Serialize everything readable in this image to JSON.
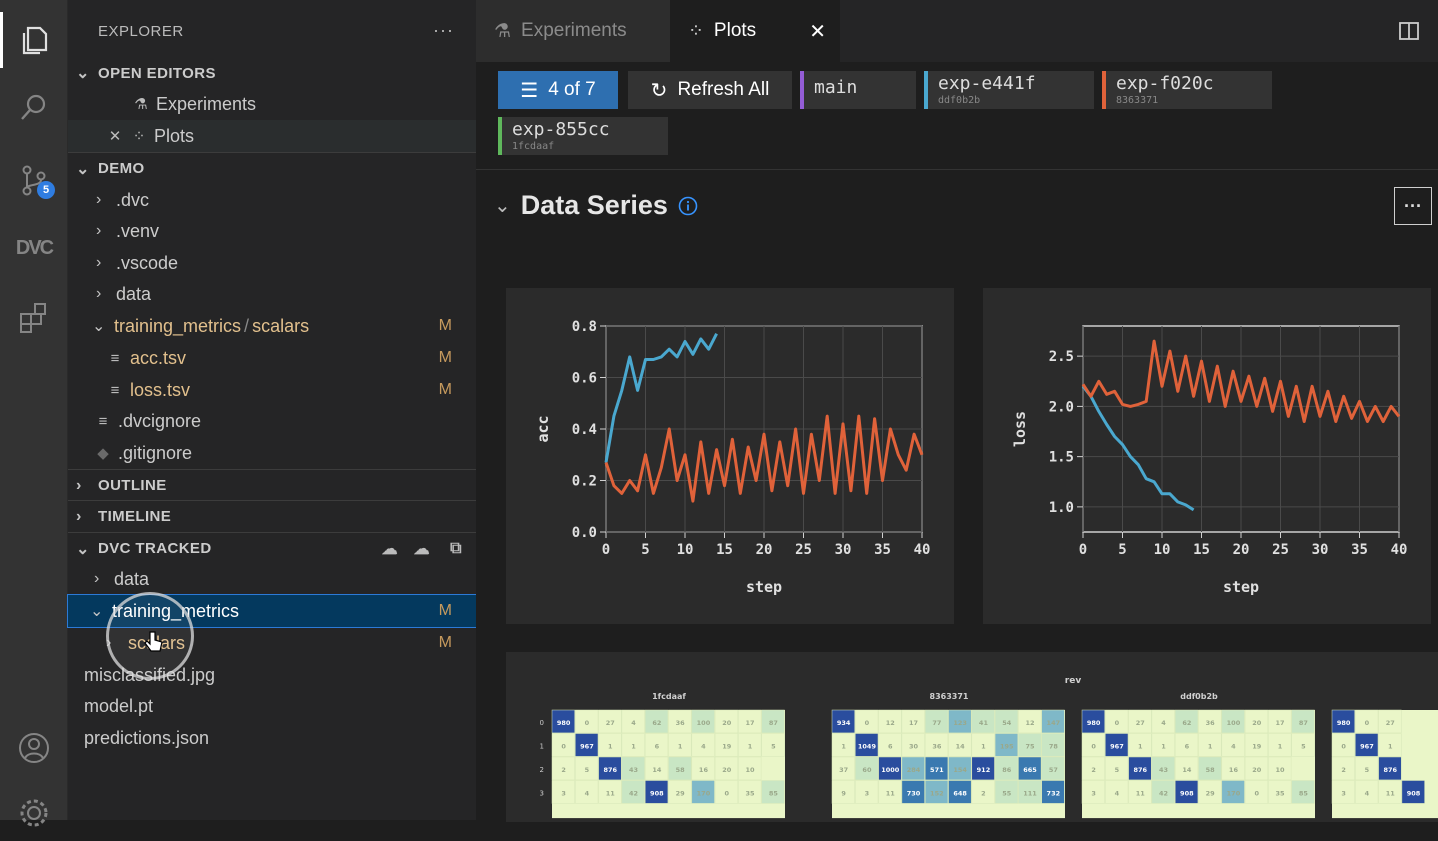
{
  "explorer": {
    "title": "EXPLORER",
    "more": "···",
    "open_editors": {
      "header": "OPEN EDITORS",
      "items": [
        {
          "label": "Experiments"
        },
        {
          "label": "Plots"
        }
      ]
    },
    "demo": {
      "header": "DEMO",
      "items": [
        {
          "label": ".dvc"
        },
        {
          "label": ".venv"
        },
        {
          "label": ".vscode"
        },
        {
          "label": "data"
        },
        {
          "label": "training_metrics",
          "suffix": "scalars",
          "flag": "M"
        },
        {
          "label": "acc.tsv",
          "flag": "M"
        },
        {
          "label": "loss.tsv",
          "flag": "M"
        },
        {
          "label": ".dvcignore"
        },
        {
          "label": ".gitignore"
        }
      ]
    },
    "outline_header": "OUTLINE",
    "timeline_header": "TIMELINE",
    "dvc_tracked": {
      "header": "DVC TRACKED",
      "items": [
        {
          "label": "data"
        },
        {
          "label": "training_metrics",
          "flag": "M"
        },
        {
          "label": "scalars",
          "flag": "M"
        },
        {
          "label": "misclassified.jpg"
        },
        {
          "label": "model.pt"
        },
        {
          "label": "predictions.json"
        }
      ]
    }
  },
  "activity": {
    "scm_badge": "5",
    "dvc_label": "DVC"
  },
  "tabs": [
    {
      "label": "Experiments"
    },
    {
      "label": "Plots"
    }
  ],
  "toolbar": {
    "filter_label": "4 of 7",
    "refresh_label": "Refresh All",
    "revisions": [
      {
        "name": "main",
        "hash": "",
        "color": "#945dd6"
      },
      {
        "name": "exp-e441f",
        "hash": "ddf0b2b",
        "color": "#4aa8cf"
      },
      {
        "name": "exp-f020c",
        "hash": "8363371",
        "color": "#e0623a"
      },
      {
        "name": "exp-855cc",
        "hash": "1fcdaaf",
        "color": "#5fb85c"
      }
    ]
  },
  "section": {
    "title": "Data Series",
    "more": "···"
  },
  "colors": {
    "blue": "#4aa8cf",
    "orange": "#e0623a",
    "accent": "#2f7de1"
  },
  "chart_data": [
    {
      "type": "line",
      "xlabel": "step",
      "ylabel": "acc",
      "xlim": [
        0,
        40
      ],
      "ylim": [
        0,
        0.8
      ],
      "xticks": [
        0,
        5,
        10,
        15,
        20,
        25,
        30,
        35,
        40
      ],
      "yticks": [
        "0.0",
        "0.2",
        "0.4",
        "0.6",
        "0.8"
      ],
      "grid": true,
      "series": [
        {
          "color": "#4aa8cf",
          "x": [
            0,
            1,
            2,
            3,
            4,
            5,
            6,
            7,
            8,
            9,
            10,
            11,
            12,
            13,
            14
          ],
          "y": [
            0.27,
            0.45,
            0.55,
            0.68,
            0.55,
            0.67,
            0.67,
            0.68,
            0.71,
            0.68,
            0.74,
            0.69,
            0.75,
            0.71,
            0.77
          ]
        },
        {
          "color": "#e0623a",
          "x": [
            0,
            1,
            2,
            3,
            4,
            5,
            6,
            7,
            8,
            9,
            10,
            11,
            12,
            13,
            14,
            15,
            16,
            17,
            18,
            19,
            20,
            21,
            22,
            23,
            24,
            25,
            26,
            27,
            28,
            29,
            30,
            31,
            32,
            33,
            34,
            35,
            36,
            37,
            38,
            39,
            40
          ],
          "y": [
            0.27,
            0.18,
            0.15,
            0.2,
            0.16,
            0.3,
            0.15,
            0.25,
            0.4,
            0.2,
            0.3,
            0.12,
            0.35,
            0.15,
            0.32,
            0.18,
            0.36,
            0.15,
            0.33,
            0.2,
            0.38,
            0.16,
            0.35,
            0.18,
            0.4,
            0.15,
            0.38,
            0.2,
            0.45,
            0.15,
            0.42,
            0.16,
            0.45,
            0.15,
            0.44,
            0.2,
            0.4,
            0.3,
            0.24,
            0.38,
            0.3
          ]
        }
      ]
    },
    {
      "type": "line",
      "xlabel": "step",
      "ylabel": "loss",
      "xlim": [
        0,
        40
      ],
      "ylim": [
        0.75,
        2.8
      ],
      "xticks": [
        0,
        5,
        10,
        15,
        20,
        25,
        30,
        35,
        40
      ],
      "yticks": [
        "1.0",
        "1.5",
        "2.0",
        "2.5"
      ],
      "grid": true,
      "series": [
        {
          "color": "#4aa8cf",
          "x": [
            0,
            1,
            2,
            3,
            4,
            5,
            6,
            7,
            8,
            9,
            10,
            11,
            12,
            13,
            14
          ],
          "y": [
            2.2,
            2.1,
            1.95,
            1.82,
            1.7,
            1.62,
            1.5,
            1.42,
            1.28,
            1.25,
            1.13,
            1.13,
            1.05,
            1.02,
            0.97
          ]
        },
        {
          "color": "#e0623a",
          "x": [
            0,
            1,
            2,
            3,
            4,
            5,
            6,
            7,
            8,
            9,
            10,
            11,
            12,
            13,
            14,
            15,
            16,
            17,
            18,
            19,
            20,
            21,
            22,
            23,
            24,
            25,
            26,
            27,
            28,
            29,
            30,
            31,
            32,
            33,
            34,
            35,
            36,
            37,
            38,
            39,
            40
          ],
          "y": [
            2.22,
            2.1,
            2.25,
            2.12,
            2.15,
            2.02,
            2.0,
            2.02,
            2.05,
            2.65,
            2.2,
            2.55,
            2.15,
            2.5,
            2.1,
            2.45,
            2.05,
            2.4,
            2.0,
            2.35,
            2.05,
            2.3,
            2.0,
            2.28,
            1.95,
            2.25,
            1.9,
            2.2,
            1.85,
            2.2,
            1.9,
            2.15,
            1.85,
            2.1,
            1.88,
            2.05,
            1.85,
            2.0,
            1.85,
            2.0,
            1.9
          ]
        }
      ]
    },
    {
      "type": "heatmap",
      "title": "rev",
      "panels": [
        {
          "name": "1fcdaaf",
          "rows": [
            [
              "980",
              "0",
              "27",
              "4",
              "62",
              "36",
              "100",
              "20",
              "17",
              "87"
            ],
            [
              "0",
              "967",
              "1",
              "1",
              "6",
              "1",
              "4",
              "19",
              "1",
              "5"
            ],
            [
              "2",
              "5",
              "876",
              "43",
              "14",
              "58",
              "16",
              "20",
              "10"
            ],
            [
              "3",
              "4",
              "11",
              "42",
              "908",
              "29",
              "170",
              "0",
              "35",
              "85"
            ]
          ]
        },
        {
          "name": "8363371",
          "rows": [
            [
              "934",
              "0",
              "12",
              "17",
              "77",
              "123",
              "41",
              "54",
              "12",
              "147"
            ],
            [
              "1",
              "1049",
              "6",
              "30",
              "36",
              "14",
              "1",
              "195",
              "75",
              "78"
            ],
            [
              "37",
              "60",
              "1000",
              "284",
              "571",
              "154",
              "912",
              "86",
              "665",
              "57"
            ],
            [
              "9",
              "3",
              "11",
              "730",
              "152",
              "648",
              "2",
              "55",
              "111",
              "732"
            ]
          ]
        },
        {
          "name": "ddf0b2b",
          "rows": [
            [
              "980",
              "0",
              "27",
              "4",
              "62",
              "36",
              "100",
              "20",
              "17",
              "87"
            ],
            [
              "0",
              "967",
              "1",
              "1",
              "6",
              "1",
              "4",
              "19",
              "1",
              "5"
            ],
            [
              "2",
              "5",
              "876",
              "43",
              "14",
              "58",
              "16",
              "20",
              "10"
            ],
            [
              "3",
              "4",
              "11",
              "42",
              "908",
              "29",
              "170",
              "0",
              "35",
              "85"
            ]
          ]
        },
        {
          "name": "",
          "rows": [
            [
              "980",
              "0",
              "27"
            ],
            [
              "0",
              "967",
              "1"
            ],
            [
              "2",
              "5",
              "876"
            ],
            [
              "3",
              "4",
              "11",
              "908"
            ]
          ]
        }
      ]
    }
  ]
}
